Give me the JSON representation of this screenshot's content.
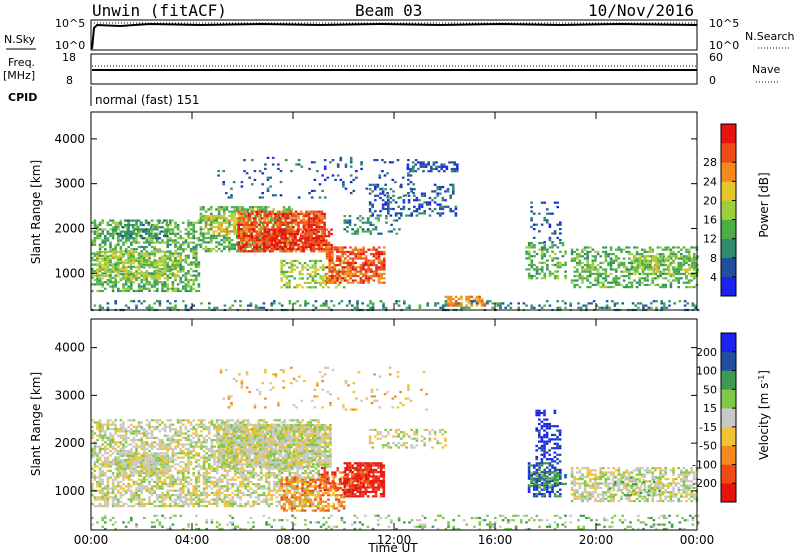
{
  "header": {
    "radar": "Unwin (fitACF)",
    "beam": "Beam 03",
    "date": "10/Nov/2016"
  },
  "status_panel": {
    "nsky_label": "N.Sky",
    "nsky_ticks": [
      "10^5",
      "10^0"
    ],
    "nsearch_label": "N.Search",
    "nsearch_ticks": [
      "10^5",
      "10^0"
    ],
    "freq_label": "Freq.",
    "freq_unit": "[MHz]",
    "freq_ticks": [
      "18",
      "8"
    ],
    "nave_label": "Nave",
    "nave_ticks": [
      "60",
      "0"
    ],
    "cpid_label": "CPID",
    "cpid_value": "normal (fast) 151"
  },
  "colors": {
    "power": [
      "#1a22ee",
      "#1f4f9e",
      "#2e8c6a",
      "#4cae45",
      "#9ccf3c",
      "#e5c62a",
      "#f48a1e",
      "#ef4b16",
      "#e6140f"
    ],
    "velocity": [
      "#e6140f",
      "#ef4b16",
      "#f48a1e",
      "#f0c236",
      "#c8c8c8",
      "#7ec946",
      "#3e9a50",
      "#1f4f9e",
      "#1a22ee"
    ]
  },
  "chart_data": [
    {
      "type": "heatmap",
      "name": "power",
      "ylabel": "Slant Range [km]",
      "x_ticks": [
        "00:00",
        "04:00",
        "08:00",
        "12:00",
        "16:00",
        "20:00",
        "00:00"
      ],
      "y_ticks": [
        "1000",
        "2000",
        "3000",
        "4000"
      ],
      "xlim": [
        0,
        24
      ],
      "ylim": [
        180,
        4600
      ],
      "colorbar_label": "Power [dB]",
      "colorbar_ticks": [
        "4",
        "8",
        "12",
        "16",
        "20",
        "24",
        "28"
      ],
      "regions": [
        {
          "x": [
            0.0,
            4.3
          ],
          "y": [
            600,
            2200
          ],
          "level": 3,
          "density": 0.55
        },
        {
          "x": [
            0.2,
            3.5
          ],
          "y": [
            900,
            1500
          ],
          "level": 4,
          "density": 0.55
        },
        {
          "x": [
            1.0,
            3.0
          ],
          "y": [
            1800,
            2200
          ],
          "level": 2,
          "density": 0.4
        },
        {
          "x": [
            4.3,
            8.0
          ],
          "y": [
            1500,
            2500
          ],
          "level": 3,
          "density": 0.55
        },
        {
          "x": [
            4.5,
            6.2
          ],
          "y": [
            1900,
            2300
          ],
          "level": 5,
          "density": 0.5
        },
        {
          "x": [
            5.8,
            9.3
          ],
          "y": [
            1500,
            2400
          ],
          "level": 7,
          "density": 0.75
        },
        {
          "x": [
            6.8,
            9.5
          ],
          "y": [
            1550,
            2000
          ],
          "level": 8,
          "density": 0.6
        },
        {
          "x": [
            7.5,
            10.0
          ],
          "y": [
            700,
            1300
          ],
          "level": 4,
          "density": 0.45
        },
        {
          "x": [
            9.3,
            11.6
          ],
          "y": [
            800,
            1600
          ],
          "level": 7,
          "density": 0.65
        },
        {
          "x": [
            10.0,
            12.3
          ],
          "y": [
            1900,
            2300
          ],
          "level": 2,
          "density": 0.35
        },
        {
          "x": [
            5.0,
            13.0
          ],
          "y": [
            2700,
            3600
          ],
          "level": 1,
          "density": 0.08
        },
        {
          "x": [
            11.0,
            14.5
          ],
          "y": [
            2300,
            3000
          ],
          "level": 1,
          "density": 0.3
        },
        {
          "x": [
            12.5,
            14.5
          ],
          "y": [
            3300,
            3500
          ],
          "level": 1,
          "density": 0.6
        },
        {
          "x": [
            14.0,
            15.6
          ],
          "y": [
            280,
            500
          ],
          "level": 6,
          "density": 0.5
        },
        {
          "x": [
            17.2,
            18.8
          ],
          "y": [
            900,
            1700
          ],
          "level": 3,
          "density": 0.45
        },
        {
          "x": [
            17.4,
            18.6
          ],
          "y": [
            1700,
            2600
          ],
          "level": 1,
          "density": 0.2
        },
        {
          "x": [
            19.0,
            24.0
          ],
          "y": [
            700,
            1600
          ],
          "level": 3,
          "density": 0.5
        },
        {
          "x": [
            21.5,
            24.0
          ],
          "y": [
            1000,
            1400
          ],
          "level": 4,
          "density": 0.5
        },
        {
          "x": [
            0.0,
            24.0
          ],
          "y": [
            180,
            400
          ],
          "level": 2,
          "density": 0.25
        }
      ]
    },
    {
      "type": "heatmap",
      "name": "velocity",
      "xlabel": "Time UT",
      "ylabel": "Slant Range [km]",
      "x_ticks": [
        "00:00",
        "04:00",
        "08:00",
        "12:00",
        "16:00",
        "20:00",
        "00:00"
      ],
      "y_ticks": [
        "1000",
        "2000",
        "3000",
        "4000"
      ],
      "xlim": [
        0,
        24
      ],
      "ylim": [
        180,
        4600
      ],
      "colorbar_label": "Velocity [m s-1]",
      "colorbar_ticks": [
        "-200",
        "-100",
        "-50",
        "-15",
        "15",
        "50",
        "100",
        "200"
      ],
      "regions": [
        {
          "x": [
            0.0,
            9.0
          ],
          "y": [
            700,
            2500
          ],
          "level": 4,
          "density": 0.6
        },
        {
          "x": [
            1.0,
            3.0
          ],
          "y": [
            1300,
            1800
          ],
          "level": 4,
          "density": 0.7
        },
        {
          "x": [
            5.0,
            9.5
          ],
          "y": [
            1500,
            2400
          ],
          "level": 4,
          "density": 0.85
        },
        {
          "x": [
            7.5,
            10.0
          ],
          "y": [
            600,
            1300
          ],
          "level": 2,
          "density": 0.55
        },
        {
          "x": [
            10.0,
            11.6
          ],
          "y": [
            900,
            1600
          ],
          "level": 0,
          "density": 0.8
        },
        {
          "x": [
            9.0,
            11.0
          ],
          "y": [
            1000,
            1500
          ],
          "level": 1,
          "density": 0.5
        },
        {
          "x": [
            11.0,
            14.0
          ],
          "y": [
            1900,
            2300
          ],
          "level": 4,
          "density": 0.4
        },
        {
          "x": [
            5.0,
            13.5
          ],
          "y": [
            2700,
            3600
          ],
          "level": 3,
          "density": 0.07
        },
        {
          "x": [
            0.0,
            24.0
          ],
          "y": [
            180,
            500
          ],
          "level": 5,
          "density": 0.18
        },
        {
          "x": [
            17.3,
            18.6
          ],
          "y": [
            900,
            1600
          ],
          "level": 7,
          "density": 0.65
        },
        {
          "x": [
            17.6,
            18.6
          ],
          "y": [
            1600,
            2700
          ],
          "level": 8,
          "density": 0.35
        },
        {
          "x": [
            17.4,
            18.8
          ],
          "y": [
            1100,
            1400
          ],
          "level": 6,
          "density": 0.5
        },
        {
          "x": [
            19.0,
            24.0
          ],
          "y": [
            800,
            1500
          ],
          "level": 4,
          "density": 0.6
        },
        {
          "x": [
            20.5,
            22.5
          ],
          "y": [
            900,
            1300
          ],
          "level": 5,
          "density": 0.3
        }
      ]
    }
  ]
}
